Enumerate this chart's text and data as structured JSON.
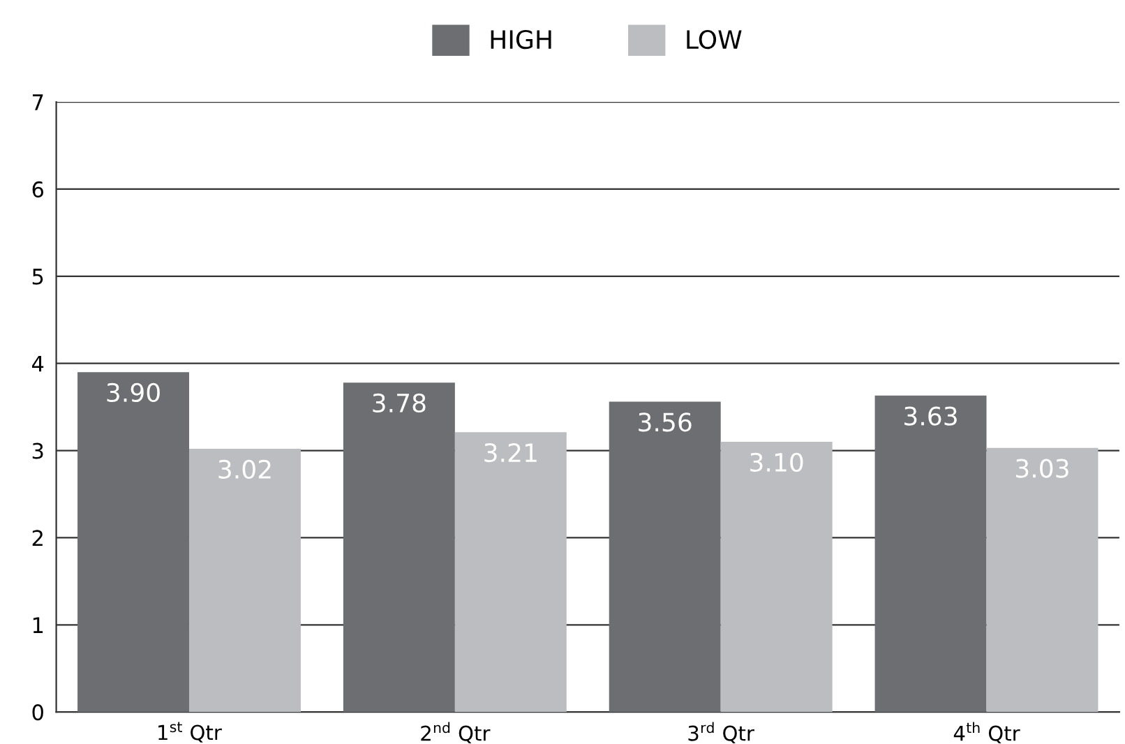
{
  "chart_data": {
    "type": "bar",
    "categories": [
      "1$^{st}$ Qtr",
      "2$^{nd}$ Qtr",
      "3$^{rd}$ Qtr",
      "4$^{th}$ Qtr"
    ],
    "series": [
      {
        "name": "HIGH",
        "color": "#6d6e71",
        "values": [
          3.9,
          3.78,
          3.56,
          3.63
        ],
        "value_labels": [
          "3.90",
          "3.78",
          "3.56",
          "3.63"
        ]
      },
      {
        "name": "LOW",
        "color": "#bcbdc0",
        "values": [
          3.02,
          3.21,
          3.1,
          3.03
        ],
        "value_labels": [
          "3.02",
          "3.21",
          "3.10",
          "3.03"
        ]
      }
    ],
    "ylim": [
      0,
      7
    ],
    "yticks": [
      0,
      1,
      2,
      3,
      4,
      5,
      6,
      7
    ],
    "grid": "y",
    "legend": "top"
  }
}
